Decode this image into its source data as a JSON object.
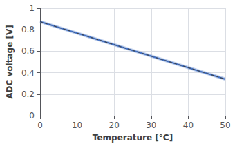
{
  "chart_data": {
    "type": "line",
    "xlabel": "Temperature [°C]",
    "ylabel": "ADC voltage [V]",
    "x": [
      0,
      50
    ],
    "series": [
      {
        "values": [
          0.875,
          0.34
        ],
        "color": "#4472C4",
        "line_style": "solid",
        "band_lower": [
          0.86,
          0.325
        ],
        "band_upper": [
          0.89,
          0.355
        ]
      },
      {
        "values": [
          0.875,
          0.34
        ],
        "color": "#404040",
        "line_style": "dashed"
      }
    ],
    "xlim": [
      0,
      50
    ],
    "ylim": [
      0,
      1
    ],
    "xticks": [
      0,
      10,
      20,
      30,
      40,
      50
    ],
    "yticks": [
      0,
      0.2,
      0.4,
      0.6,
      0.8,
      1
    ],
    "grid": true
  }
}
